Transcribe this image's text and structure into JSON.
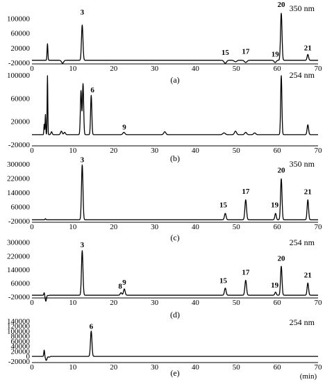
{
  "figure": {
    "x_axis_unit": "(min)"
  },
  "chart_data": [
    {
      "type": "line",
      "panel_label": "(a)",
      "wavelength": "350 nm",
      "x_ticks": [
        0,
        10,
        20,
        30,
        40,
        50,
        60,
        70
      ],
      "y_ticks": [
        -20000,
        20000,
        60000,
        100000
      ],
      "xlim": [
        0,
        70
      ],
      "ylim": [
        -20000,
        135000
      ],
      "baseline": -14000,
      "peaks": [
        {
          "t": 3.8,
          "h": 45000,
          "w": 0.1
        },
        {
          "t": 7.5,
          "h": -8000,
          "w": 0.25
        },
        {
          "t": 12.3,
          "h": 96000,
          "w": 0.18
        },
        {
          "t": 47.3,
          "h": -8000,
          "w": 0.3
        },
        {
          "t": 49.8,
          "h": -4000,
          "w": 0.3
        },
        {
          "t": 52.3,
          "h": -6000,
          "w": 0.3
        },
        {
          "t": 59.5,
          "h": -6000,
          "w": 0.25
        },
        {
          "t": 61.0,
          "h": 128000,
          "w": 0.18
        },
        {
          "t": 67.5,
          "h": 16000,
          "w": 0.18
        }
      ],
      "peak_labels": [
        {
          "text": "3",
          "t": 12.3,
          "y": 110000
        },
        {
          "text": "15",
          "t": 47.3,
          "y": 1000
        },
        {
          "text": "17",
          "t": 52.3,
          "y": 4000
        },
        {
          "text": "19",
          "t": 59.5,
          "y": -4000
        },
        {
          "text": "20",
          "t": 61.0,
          "y": 131000
        },
        {
          "text": "21",
          "t": 67.5,
          "y": 13000
        }
      ]
    },
    {
      "type": "line",
      "panel_label": "(b)",
      "wavelength": "254 nm",
      "x_ticks": [
        0,
        10,
        20,
        30,
        40,
        50,
        60,
        70
      ],
      "y_ticks": [
        -20000,
        20000,
        60000,
        100000
      ],
      "xlim": [
        0,
        70
      ],
      "ylim": [
        -20000,
        105000
      ],
      "baseline": -3000,
      "peaks": [
        {
          "t": 3.0,
          "h": 18000,
          "w": 0.08
        },
        {
          "t": 3.3,
          "h": 35000,
          "w": 0.08
        },
        {
          "t": 3.8,
          "h": 102000,
          "w": 0.08
        },
        {
          "t": 4.8,
          "h": 5000,
          "w": 0.15
        },
        {
          "t": 7.2,
          "h": 6000,
          "w": 0.2
        },
        {
          "t": 8.0,
          "h": 4000,
          "w": 0.2
        },
        {
          "t": 12.0,
          "h": 76000,
          "w": 0.15
        },
        {
          "t": 12.5,
          "h": 88000,
          "w": 0.15
        },
        {
          "t": 14.5,
          "h": 68000,
          "w": 0.15
        },
        {
          "t": 22.5,
          "h": 4000,
          "w": 0.25
        },
        {
          "t": 32.5,
          "h": 5000,
          "w": 0.25
        },
        {
          "t": 47.0,
          "h": 3000,
          "w": 0.3
        },
        {
          "t": 49.8,
          "h": 6000,
          "w": 0.25
        },
        {
          "t": 52.3,
          "h": 4000,
          "w": 0.25
        },
        {
          "t": 54.5,
          "h": 3000,
          "w": 0.25
        },
        {
          "t": 61.0,
          "h": 102000,
          "w": 0.15
        },
        {
          "t": 67.5,
          "h": 17000,
          "w": 0.18
        }
      ],
      "peak_labels": [
        {
          "text": "6",
          "t": 14.8,
          "y": 70000
        },
        {
          "text": "9",
          "t": 22.6,
          "y": 6000
        }
      ]
    },
    {
      "type": "line",
      "panel_label": "(c)",
      "wavelength": "350 nm",
      "x_ticks": [
        0,
        10,
        20,
        30,
        40,
        50,
        60,
        70
      ],
      "y_ticks": [
        -20000,
        60000,
        140000,
        220000,
        300000
      ],
      "xlim": [
        0,
        70
      ],
      "ylim": [
        -20000,
        315000
      ],
      "baseline": -14000,
      "peaks": [
        {
          "t": 3.3,
          "h": 6000,
          "w": 0.1
        },
        {
          "t": 12.3,
          "h": 308000,
          "w": 0.18
        },
        {
          "t": 47.3,
          "h": 36000,
          "w": 0.2
        },
        {
          "t": 52.3,
          "h": 112000,
          "w": 0.2
        },
        {
          "t": 59.6,
          "h": 36000,
          "w": 0.18
        },
        {
          "t": 61.0,
          "h": 230000,
          "w": 0.18
        },
        {
          "t": 67.5,
          "h": 112000,
          "w": 0.18
        }
      ],
      "peak_labels": [
        {
          "text": "3",
          "t": 12.3,
          "y": 310000
        },
        {
          "text": "15",
          "t": 46.8,
          "y": 56000
        },
        {
          "text": "17",
          "t": 52.3,
          "y": 132000
        },
        {
          "text": "19",
          "t": 59.4,
          "y": 56000
        },
        {
          "text": "20",
          "t": 61.0,
          "y": 250000
        },
        {
          "text": "21",
          "t": 67.5,
          "y": 130000
        }
      ]
    },
    {
      "type": "line",
      "panel_label": "(d)",
      "wavelength": "254 nm",
      "x_ticks": [
        0,
        10,
        20,
        30,
        40,
        50,
        60,
        70
      ],
      "y_ticks": [
        -20000,
        60000,
        140000,
        220000,
        300000
      ],
      "xlim": [
        0,
        70
      ],
      "ylim": [
        -20000,
        315000
      ],
      "baseline": -12000,
      "peaks": [
        {
          "t": 3.0,
          "h": 15000,
          "w": 0.1
        },
        {
          "t": 3.4,
          "h": -35000,
          "w": 0.15
        },
        {
          "t": 4.0,
          "h": -2000,
          "w": 0.15
        },
        {
          "t": 12.3,
          "h": 262000,
          "w": 0.18
        },
        {
          "t": 21.8,
          "h": 15000,
          "w": 0.2
        },
        {
          "t": 22.6,
          "h": 37000,
          "w": 0.2
        },
        {
          "t": 47.3,
          "h": 42000,
          "w": 0.2
        },
        {
          "t": 52.3,
          "h": 88000,
          "w": 0.2
        },
        {
          "t": 59.6,
          "h": 18000,
          "w": 0.18
        },
        {
          "t": 61.0,
          "h": 170000,
          "w": 0.18
        },
        {
          "t": 67.5,
          "h": 72000,
          "w": 0.18
        }
      ],
      "peak_labels": [
        {
          "text": "3",
          "t": 12.3,
          "y": 270000
        },
        {
          "text": "8",
          "t": 21.6,
          "y": 28000
        },
        {
          "text": "9",
          "t": 22.6,
          "y": 50000
        },
        {
          "text": "15",
          "t": 46.8,
          "y": 60000
        },
        {
          "text": "17",
          "t": 52.3,
          "y": 108000
        },
        {
          "text": "19",
          "t": 59.4,
          "y": 34000
        },
        {
          "text": "20",
          "t": 61.0,
          "y": 190000
        },
        {
          "text": "21",
          "t": 67.5,
          "y": 92000
        }
      ]
    },
    {
      "type": "line",
      "panel_label": "(e)",
      "wavelength": "254 nm",
      "x_ticks": [
        0,
        10,
        20,
        30,
        40,
        50,
        60,
        70
      ],
      "y_ticks": [
        -20000,
        0,
        20000,
        40000,
        60000,
        80000,
        100000,
        120000,
        140000
      ],
      "xlim": [
        0,
        70
      ],
      "ylim": [
        -20000,
        145000
      ],
      "baseline": -1000,
      "peaks": [
        {
          "t": 3.0,
          "h": 25000,
          "w": 0.1
        },
        {
          "t": 3.5,
          "h": -16000,
          "w": 0.18
        },
        {
          "t": 4.2,
          "h": -3000,
          "w": 0.2
        },
        {
          "t": 14.5,
          "h": 100000,
          "w": 0.18
        }
      ],
      "peak_labels": [
        {
          "text": "6",
          "t": 14.5,
          "y": 108000
        }
      ]
    }
  ]
}
